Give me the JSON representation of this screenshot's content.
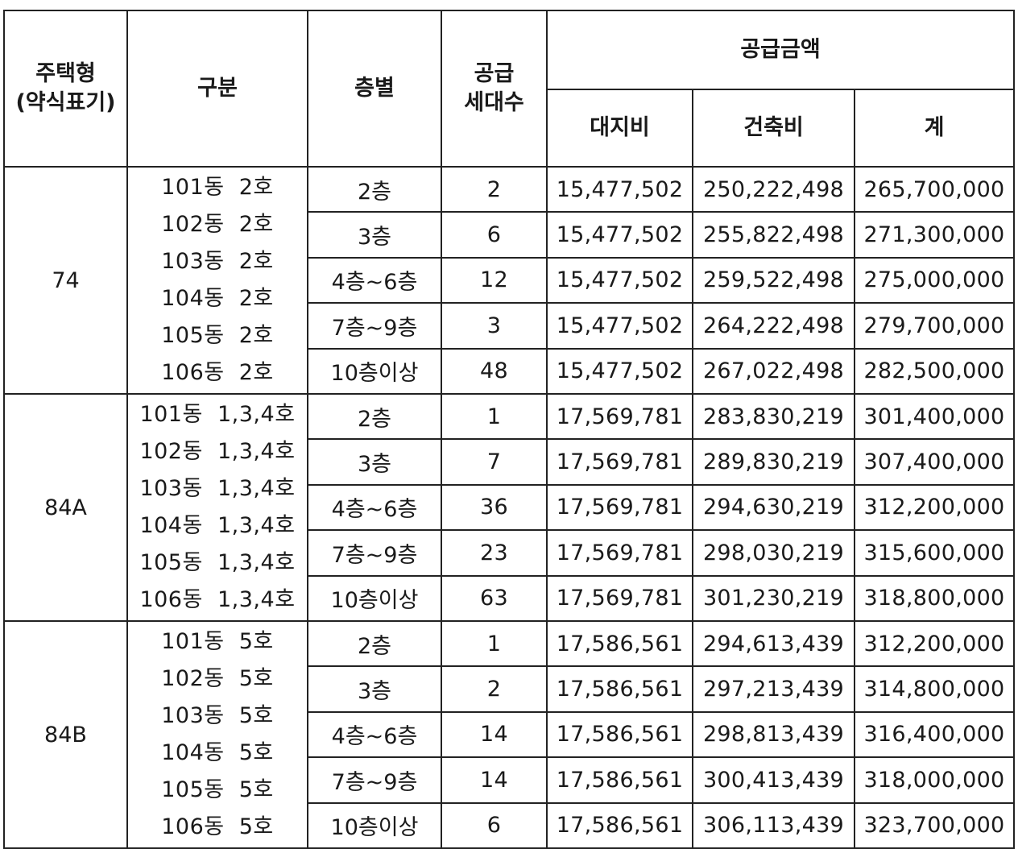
{
  "headers": {
    "type": "주택형\n(약식표기)",
    "division": "구분",
    "floor": "층별",
    "units": "공급\n세대수",
    "amount": "공급금액",
    "land": "대지비",
    "build": "건축비",
    "total": "계"
  },
  "groups": [
    {
      "type": "74",
      "dongs": [
        "101동  2호",
        "102동  2호",
        "103동  2호",
        "104동  2호",
        "105동  2호",
        "106동  2호"
      ],
      "rows": [
        {
          "floor": "2층",
          "units": "2",
          "land": "15,477,502",
          "build": "250,222,498",
          "total": "265,700,000"
        },
        {
          "floor": "3층",
          "units": "6",
          "land": "15,477,502",
          "build": "255,822,498",
          "total": "271,300,000"
        },
        {
          "floor": "4층~6층",
          "units": "12",
          "land": "15,477,502",
          "build": "259,522,498",
          "total": "275,000,000"
        },
        {
          "floor": "7층~9층",
          "units": "3",
          "land": "15,477,502",
          "build": "264,222,498",
          "total": "279,700,000"
        },
        {
          "floor": "10층이상",
          "units": "48",
          "land": "15,477,502",
          "build": "267,022,498",
          "total": "282,500,000"
        }
      ]
    },
    {
      "type": "84A",
      "dongs": [
        "101동  1,3,4호",
        "102동  1,3,4호",
        "103동  1,3,4호",
        "104동  1,3,4호",
        "105동  1,3,4호",
        "106동  1,3,4호"
      ],
      "rows": [
        {
          "floor": "2층",
          "units": "1",
          "land": "17,569,781",
          "build": "283,830,219",
          "total": "301,400,000"
        },
        {
          "floor": "3층",
          "units": "7",
          "land": "17,569,781",
          "build": "289,830,219",
          "total": "307,400,000"
        },
        {
          "floor": "4층~6층",
          "units": "36",
          "land": "17,569,781",
          "build": "294,630,219",
          "total": "312,200,000"
        },
        {
          "floor": "7층~9층",
          "units": "23",
          "land": "17,569,781",
          "build": "298,030,219",
          "total": "315,600,000"
        },
        {
          "floor": "10층이상",
          "units": "63",
          "land": "17,569,781",
          "build": "301,230,219",
          "total": "318,800,000"
        }
      ]
    },
    {
      "type": "84B",
      "dongs": [
        "101동  5호",
        "102동  5호",
        "103동  5호",
        "104동  5호",
        "105동  5호",
        "106동  5호"
      ],
      "rows": [
        {
          "floor": "2층",
          "units": "1",
          "land": "17,586,561",
          "build": "294,613,439",
          "total": "312,200,000"
        },
        {
          "floor": "3층",
          "units": "2",
          "land": "17,586,561",
          "build": "297,213,439",
          "total": "314,800,000"
        },
        {
          "floor": "4층~6층",
          "units": "14",
          "land": "17,586,561",
          "build": "298,813,439",
          "total": "316,400,000"
        },
        {
          "floor": "7층~9층",
          "units": "14",
          "land": "17,586,561",
          "build": "300,413,439",
          "total": "318,000,000"
        },
        {
          "floor": "10층이상",
          "units": "6",
          "land": "17,586,561",
          "build": "306,113,439",
          "total": "323,700,000"
        }
      ]
    }
  ]
}
